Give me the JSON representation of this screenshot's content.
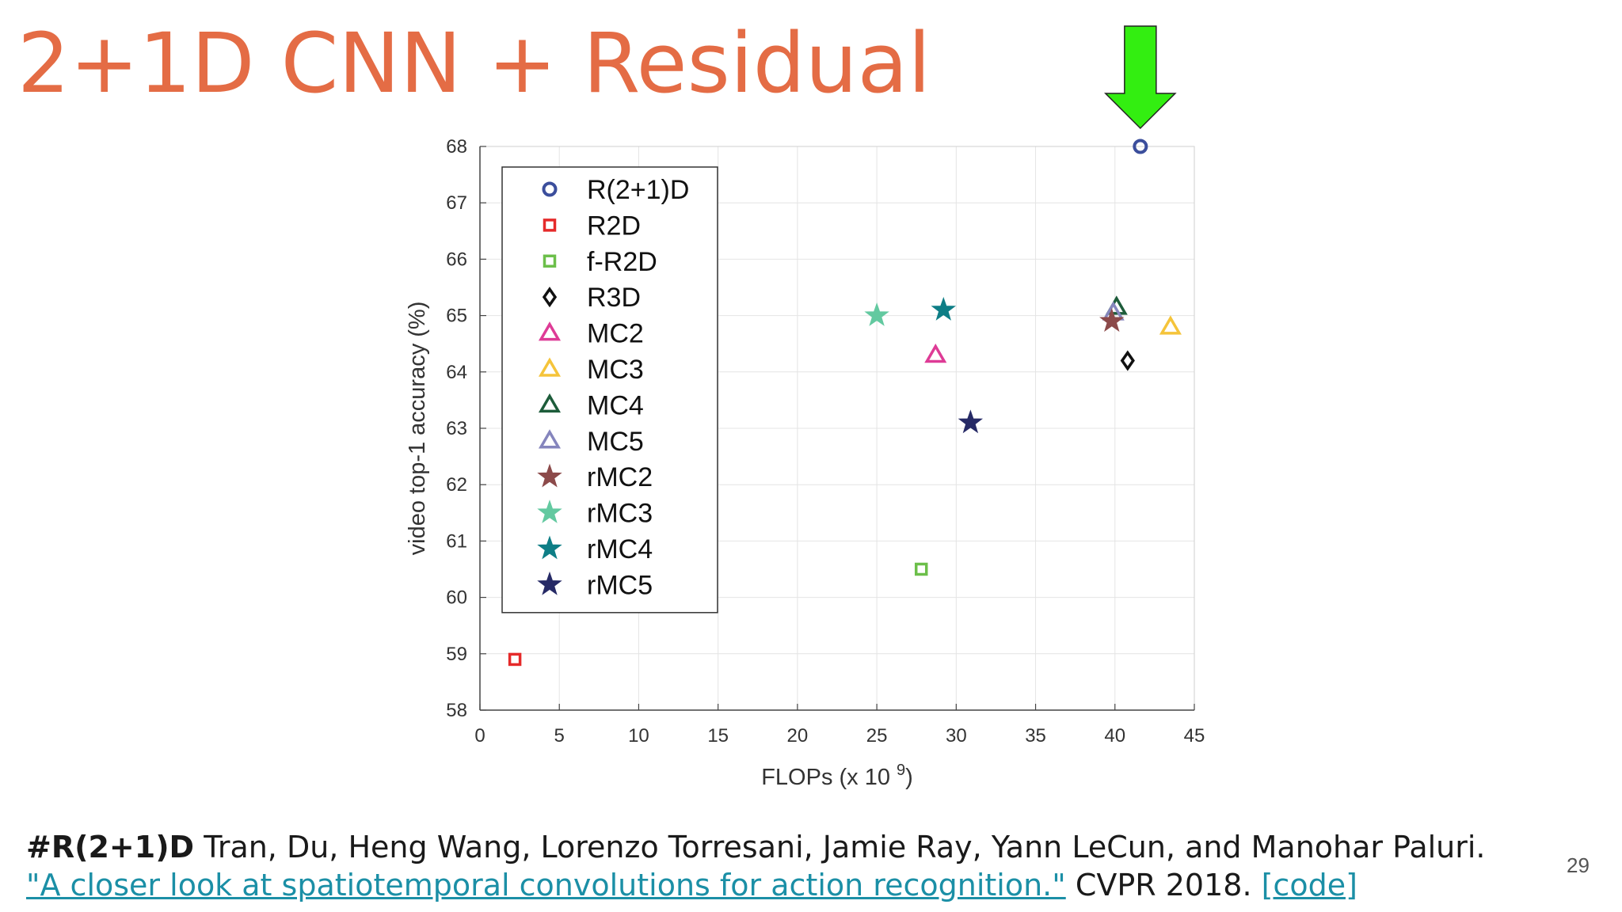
{
  "slide": {
    "title": "2+1D CNN + Residual",
    "page_number": "29"
  },
  "citation": {
    "tag": "#R(2+1)D",
    "authors": " Tran, Du, Heng Wang, Lorenzo Torresani, Jamie Ray, Yann LeCun, and Manohar Paluri. ",
    "paper_link": "\"A closer look at spatiotemporal convolutions for action recognition.\"",
    "venue": " CVPR 2018. ",
    "code_link": "[code]"
  },
  "arrow_color": "#33ee11",
  "chart_data": {
    "type": "scatter",
    "xlabel": "FLOPs (x 10",
    "xlabel_exponent": "9",
    "xlabel_close": ")",
    "ylabel": "video top-1 accuracy (%)",
    "xlim": [
      0,
      45
    ],
    "ylim": [
      58,
      68
    ],
    "xticks": [
      0,
      5,
      10,
      15,
      20,
      25,
      30,
      35,
      40,
      45
    ],
    "yticks": [
      58,
      59,
      60,
      61,
      62,
      63,
      64,
      65,
      66,
      67,
      68
    ],
    "grid": true,
    "legend_position": "top-left",
    "series": [
      {
        "name": "R(2+1)D",
        "marker": "circle",
        "color": "#3b4e9c",
        "x": 41.6,
        "y": 68.0
      },
      {
        "name": "R2D",
        "marker": "square",
        "color": "#e52a2a",
        "x": 2.2,
        "y": 58.9
      },
      {
        "name": "f-R2D",
        "marker": "square",
        "color": "#6cbf4a",
        "x": 27.8,
        "y": 60.5
      },
      {
        "name": "R3D",
        "marker": "diamond",
        "color": "#111111",
        "x": 40.8,
        "y": 64.2
      },
      {
        "name": "MC2",
        "marker": "triangle",
        "color": "#de3b96",
        "x": 28.7,
        "y": 64.3
      },
      {
        "name": "MC3",
        "marker": "triangle",
        "color": "#f5c43a",
        "x": 43.5,
        "y": 64.8
      },
      {
        "name": "MC4",
        "marker": "triangle",
        "color": "#1d5c3a",
        "x": 40.1,
        "y": 65.15
      },
      {
        "name": "MC5",
        "marker": "triangle",
        "color": "#8585bd",
        "x": 39.9,
        "y": 65.05
      },
      {
        "name": "rMC2",
        "marker": "star",
        "color": "#8c4a4a",
        "x": 39.8,
        "y": 64.9
      },
      {
        "name": "rMC3",
        "marker": "star",
        "color": "#63c9a0",
        "x": 25.0,
        "y": 65.0
      },
      {
        "name": "rMC4",
        "marker": "star",
        "color": "#0e7e86",
        "x": 29.2,
        "y": 65.1
      },
      {
        "name": "rMC5",
        "marker": "star",
        "color": "#262a66",
        "x": 30.9,
        "y": 63.1
      }
    ]
  }
}
